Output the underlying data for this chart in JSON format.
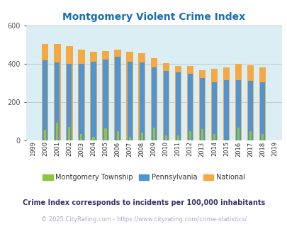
{
  "title": "Montgomery Violent Crime Index",
  "title_color": "#1a6faf",
  "years": [
    1999,
    2000,
    2001,
    2002,
    2003,
    2004,
    2005,
    2006,
    2007,
    2008,
    2009,
    2010,
    2011,
    2012,
    2013,
    2014,
    2015,
    2016,
    2017,
    2018,
    2019
  ],
  "montgomery": [
    0,
    55,
    92,
    72,
    35,
    20,
    62,
    50,
    20,
    40,
    65,
    25,
    25,
    50,
    60,
    32,
    0,
    68,
    50,
    35,
    0
  ],
  "pennsylvania": [
    0,
    420,
    408,
    400,
    400,
    412,
    422,
    438,
    412,
    408,
    382,
    365,
    355,
    348,
    325,
    305,
    315,
    315,
    310,
    303,
    0
  ],
  "national": [
    0,
    506,
    504,
    494,
    475,
    463,
    469,
    474,
    465,
    455,
    430,
    405,
    390,
    390,
    368,
    375,
    382,
    400,
    395,
    383,
    0
  ],
  "ylim": [
    0,
    600
  ],
  "yticks": [
    0,
    200,
    400,
    600
  ],
  "bg_color": "#daeef3",
  "color_montgomery": "#8dc63f",
  "color_pennsylvania": "#4f94d4",
  "color_national": "#f4a942",
  "legend_labels": [
    "Montgomery Township",
    "Pennsylvania",
    "National"
  ],
  "footnote1": "Crime Index corresponds to incidents per 100,000 inhabitants",
  "footnote2": "© 2025 CityRating.com - https://www.cityrating.com/crime-statistics/",
  "footnote1_color": "#333366",
  "footnote2_color": "#aaaacc",
  "grid_color": "#bbcccc"
}
